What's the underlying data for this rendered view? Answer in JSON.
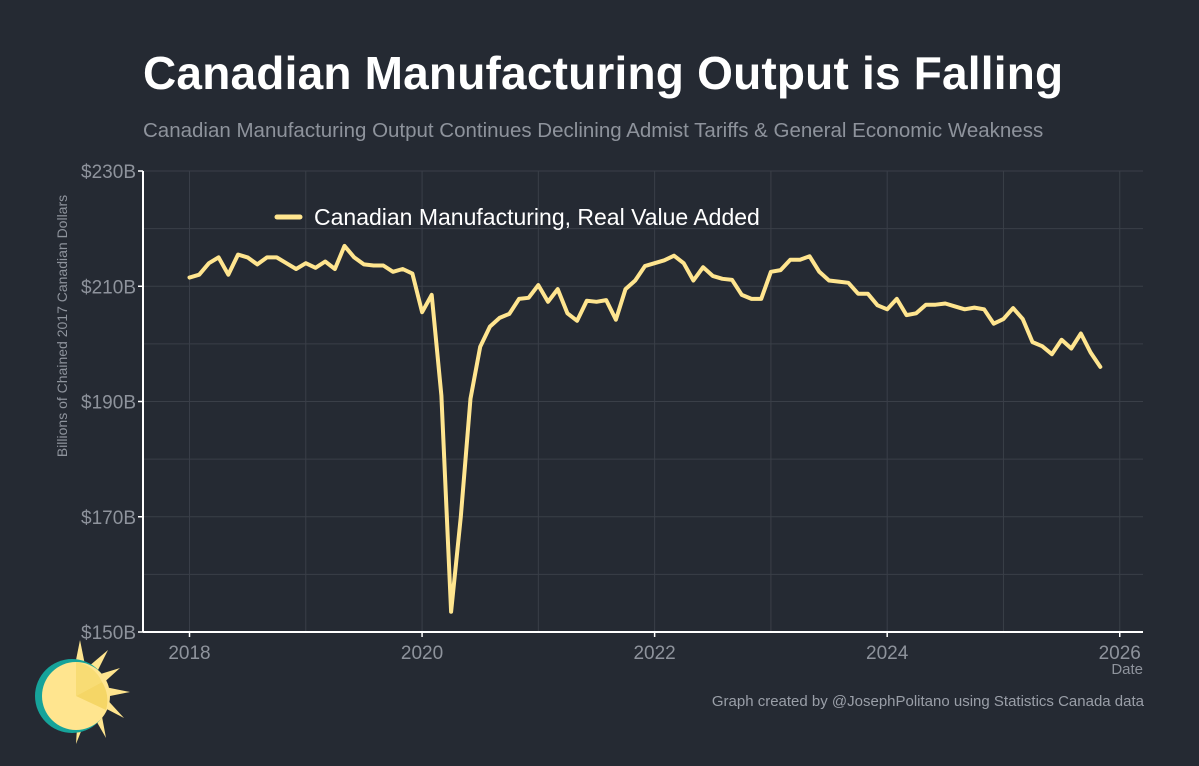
{
  "header": {
    "title": "Canadian Manufacturing Output is Falling",
    "subtitle": "Canadian Manufacturing Output Continues Declining Admist Tariffs & General Economic Weakness"
  },
  "footer": {
    "caption": "Graph created by @JosephPolitano using Statistics Canada data"
  },
  "colors": {
    "background": "#252a33",
    "line": "#ffe58f",
    "grid": "#3a3f48",
    "axis": "#ffffff",
    "tick_text": "#8e939c"
  },
  "chart_data": {
    "type": "line",
    "title": "Canadian Manufacturing Output is Falling",
    "subtitle": "Canadian Manufacturing Output Continues Declining Admist Tariffs & General Economic Weakness",
    "xlabel": "Date",
    "ylabel": "Billions of Chained 2017 Canadian Dollars",
    "xlim": [
      2017.6,
      2026.2
    ],
    "ylim": [
      150,
      230
    ],
    "x_ticks": [
      2018,
      2020,
      2022,
      2024,
      2026
    ],
    "x_tick_labels": [
      "2018",
      "2020",
      "2022",
      "2024",
      "2026"
    ],
    "y_ticks": [
      150,
      170,
      190,
      210,
      230
    ],
    "y_tick_labels": [
      "$150B",
      "$170B",
      "$190B",
      "$210B",
      "$230B"
    ],
    "grid": true,
    "legend": "top-left",
    "series": [
      {
        "name": "Canadian Manufacturing, Real Value Added",
        "x_start": 2018.0,
        "x_step": 0.08333,
        "values": [
          211.5,
          212.0,
          214.0,
          215.0,
          212.0,
          215.5,
          215.0,
          213.8,
          215.0,
          215.0,
          214.0,
          213.0,
          214.0,
          213.2,
          214.3,
          213.0,
          217.0,
          215.0,
          213.8,
          213.6,
          213.6,
          212.5,
          213.0,
          212.2,
          205.5,
          208.5,
          191.0,
          153.5,
          170.0,
          190.5,
          199.5,
          203.0,
          204.5,
          205.2,
          207.8,
          208.0,
          210.2,
          207.3,
          209.5,
          205.3,
          204.0,
          207.5,
          207.3,
          207.6,
          204.2,
          209.5,
          211.0,
          213.5,
          214.0,
          214.5,
          215.3,
          214.0,
          211.0,
          213.3,
          211.8,
          211.3,
          211.1,
          208.5,
          207.8,
          207.8,
          212.5,
          212.8,
          214.6,
          214.6,
          215.2,
          212.5,
          211.0,
          210.8,
          210.6,
          208.7,
          208.7,
          206.7,
          206.0,
          207.8,
          205.0,
          205.3,
          206.8,
          206.8,
          207.0,
          206.5,
          206.0,
          206.3,
          206.0,
          203.5,
          204.3,
          206.2,
          204.3,
          200.3,
          199.6,
          198.2,
          200.7,
          199.2,
          201.8,
          198.5,
          196.0
        ]
      }
    ]
  }
}
